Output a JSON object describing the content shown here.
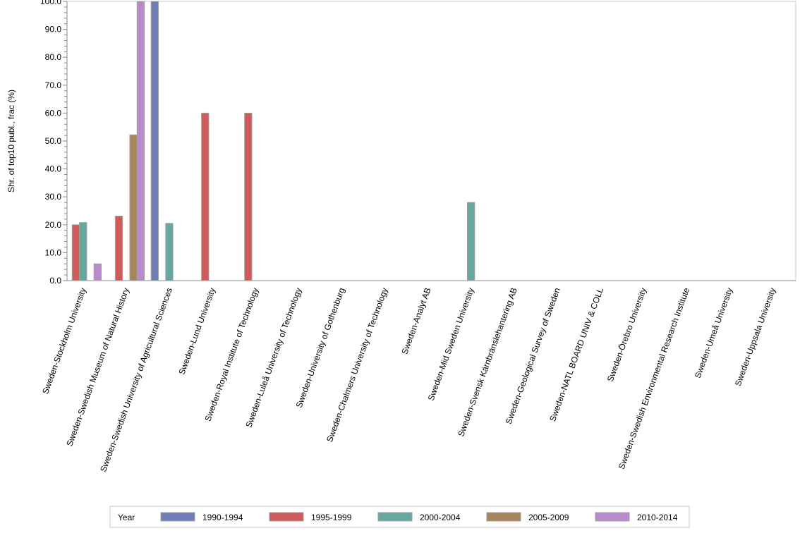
{
  "chart_data": {
    "type": "bar",
    "title": "",
    "ylabel": "Shr. of top10 publ., frac (%)",
    "xlabel": "",
    "ylim": [
      0,
      100
    ],
    "yticks": [
      "0.0",
      "10.0",
      "20.0",
      "30.0",
      "40.0",
      "50.0",
      "60.0",
      "70.0",
      "80.0",
      "90.0",
      "100.0"
    ],
    "categories": [
      "Sweden-Stockholm University",
      "Sweden-Swedish Museum of Natural History",
      "Sweden-Swedish University of Agricultural Sciences",
      "Sweden-Lund University",
      "Sweden-Royal Institute of Technology",
      "Sweden-Luleå University of Technology",
      "Sweden-University of Gothenburg",
      "Sweden-Chalmers University of Technology",
      "Sweden-Analyt AB",
      "Sweden-Mid Sweden University",
      "Sweden-Svensk Kärnbränslehantering AB",
      "Sweden-Geological Survey of Sweden",
      "Sweden-NATL BOARD UNIV & COLL",
      "Sweden-Örebro University",
      "Sweden-Swedish Environmental Research Institute",
      "Sweden-Umeå University",
      "Sweden-Uppsala University"
    ],
    "legend_title": "Year",
    "legend_position": "bottom",
    "series": [
      {
        "name": "1990-1994",
        "color": "#6f7fb5",
        "values": [
          null,
          null,
          100,
          null,
          null,
          null,
          null,
          null,
          null,
          null,
          null,
          null,
          null,
          null,
          null,
          null,
          null
        ]
      },
      {
        "name": "1995-1999",
        "color": "#d05b5b",
        "values": [
          20.0,
          23.1,
          null,
          60.0,
          60.0,
          null,
          null,
          null,
          null,
          null,
          null,
          null,
          null,
          null,
          null,
          null,
          null
        ]
      },
      {
        "name": "2000-2004",
        "color": "#66a8a0",
        "values": [
          20.8,
          null,
          20.5,
          null,
          null,
          null,
          null,
          null,
          null,
          28.0,
          null,
          null,
          null,
          null,
          null,
          null,
          null
        ]
      },
      {
        "name": "2005-2009",
        "color": "#a8845a",
        "values": [
          null,
          52.2,
          null,
          null,
          null,
          null,
          null,
          null,
          null,
          null,
          null,
          null,
          null,
          null,
          null,
          null,
          null
        ]
      },
      {
        "name": "2010-2014",
        "color": "#b98bcc",
        "values": [
          6.0,
          100,
          null,
          null,
          null,
          null,
          null,
          null,
          null,
          null,
          null,
          null,
          null,
          null,
          null,
          null,
          null
        ]
      }
    ]
  }
}
